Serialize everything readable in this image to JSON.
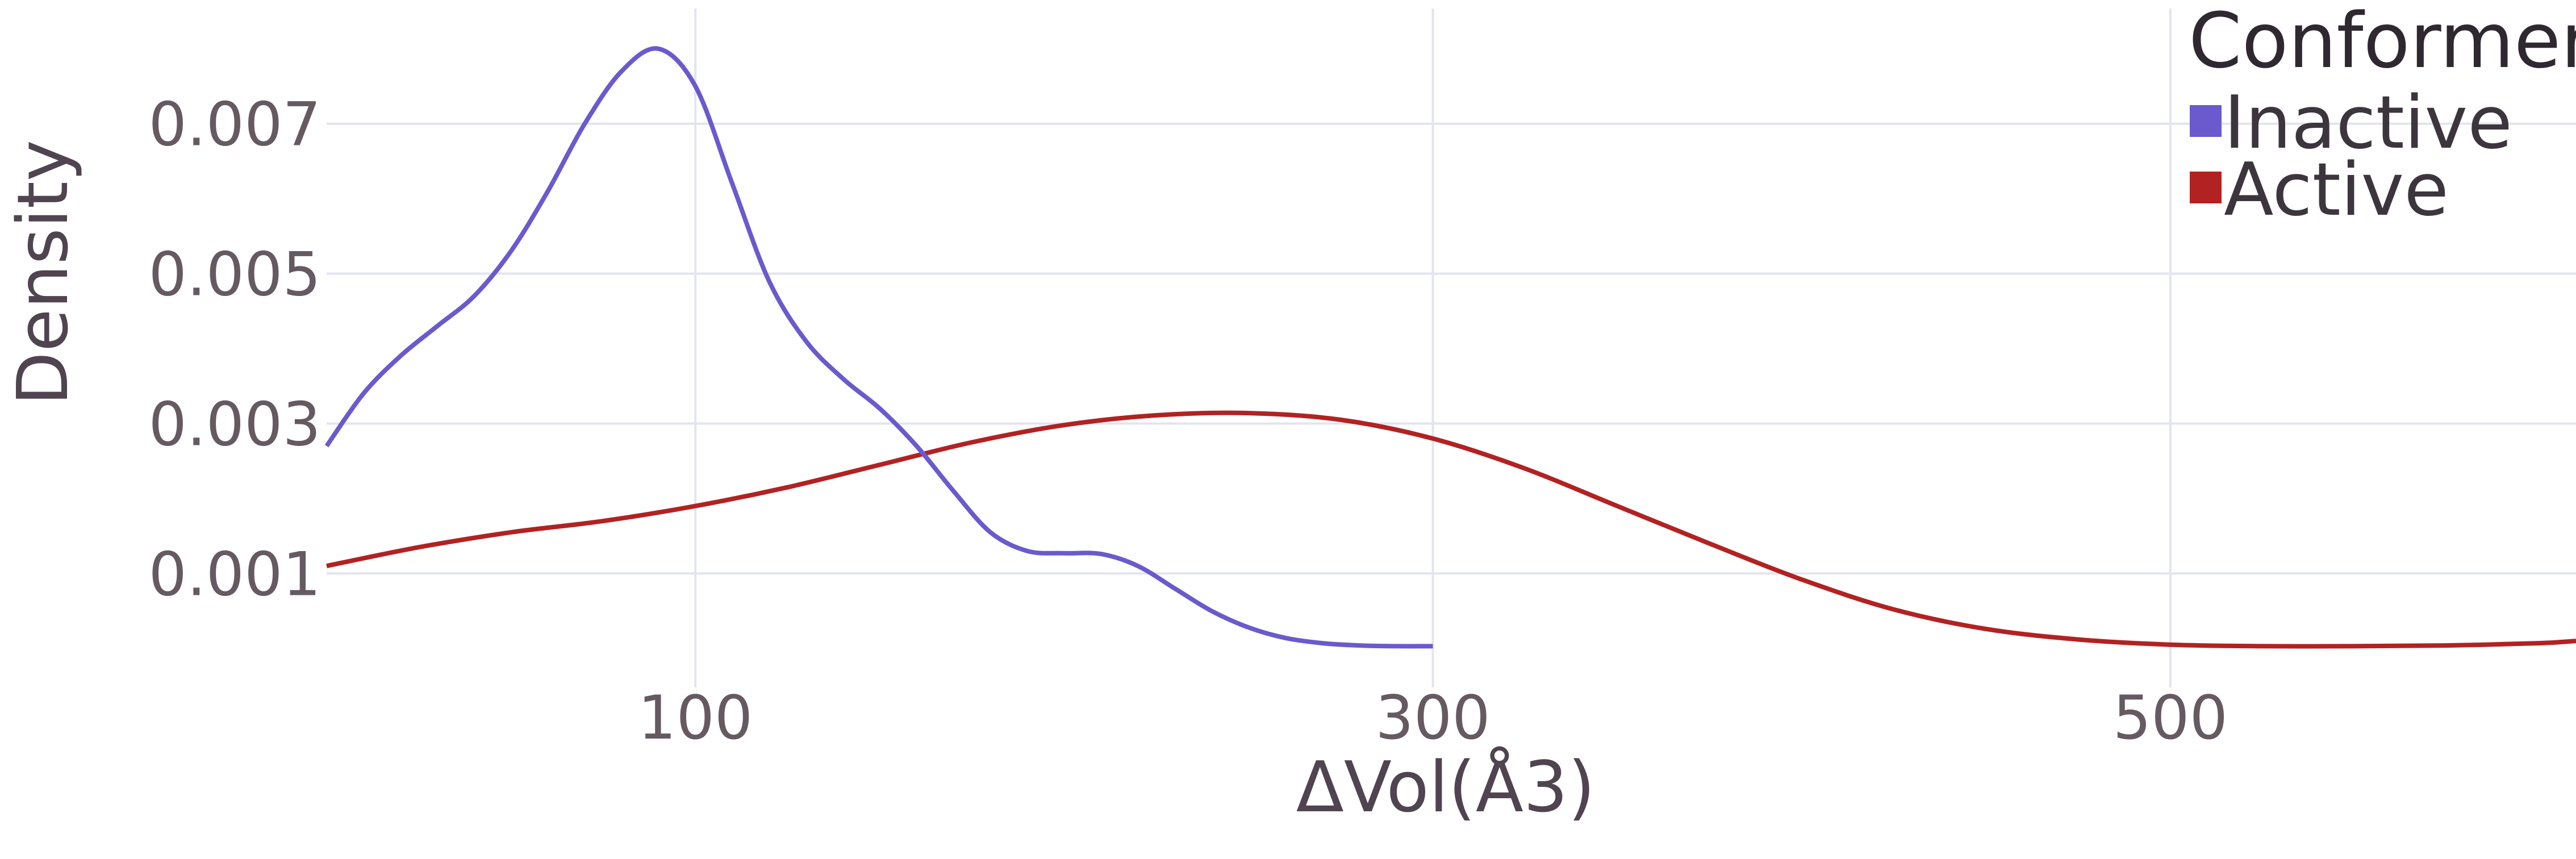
{
  "chart_data": {
    "type": "line",
    "title": "",
    "xlabel": "ΔVol(Å3)",
    "ylabel": "Density",
    "xlim": [
      0,
      610
    ],
    "ylim": [
      -0.00052,
      0.00865
    ],
    "x_ticks": [
      100,
      300,
      500
    ],
    "y_ticks": [
      0.001,
      0.003,
      0.005,
      0.007
    ],
    "x_tick_labels": [
      "100",
      "300",
      "500"
    ],
    "y_tick_labels": [
      "0.001",
      "0.003",
      "0.005",
      "0.007"
    ],
    "grid": true,
    "legend": {
      "title": "Conformer",
      "position": "top-right",
      "entries": [
        {
          "label": "Inactive",
          "color": "#6a5acd"
        },
        {
          "label": "Active",
          "color": "#b22222"
        }
      ]
    },
    "series": [
      {
        "name": "Inactive",
        "color": "#6a5acd",
        "x": [
          0,
          10,
          20,
          30,
          40,
          50,
          60,
          70,
          80,
          90,
          100,
          110,
          120,
          130,
          140,
          150,
          160,
          170,
          180,
          190,
          200,
          210,
          220,
          230,
          240,
          250,
          260,
          270,
          280,
          290,
          300
        ],
        "y": [
          0.0027,
          0.0034,
          0.0039,
          0.0043,
          0.0047,
          0.0053,
          0.0061,
          0.007,
          0.0077,
          0.008,
          0.0075,
          0.0062,
          0.0049,
          0.0041,
          0.0036,
          0.0032,
          0.0027,
          0.0021,
          0.00155,
          0.0013,
          0.00127,
          0.00126,
          0.0011,
          0.0008,
          0.0005,
          0.00028,
          0.00014,
          7e-05,
          4e-05,
          3e-05,
          3e-05
        ]
      },
      {
        "name": "Active",
        "color": "#b22222",
        "x": [
          0,
          25,
          50,
          75,
          100,
          125,
          150,
          175,
          200,
          225,
          250,
          275,
          300,
          325,
          350,
          375,
          400,
          425,
          450,
          475,
          500,
          525,
          550,
          575,
          600,
          610
        ],
        "y": [
          0.0011,
          0.00135,
          0.00155,
          0.0017,
          0.0019,
          0.00215,
          0.00245,
          0.00275,
          0.00298,
          0.00311,
          0.00314,
          0.00305,
          0.0028,
          0.0024,
          0.0019,
          0.0014,
          0.00092,
          0.00052,
          0.00026,
          0.00012,
          5e-05,
          3e-05,
          3e-05,
          4e-05,
          7e-05,
          0.0001
        ]
      }
    ]
  }
}
